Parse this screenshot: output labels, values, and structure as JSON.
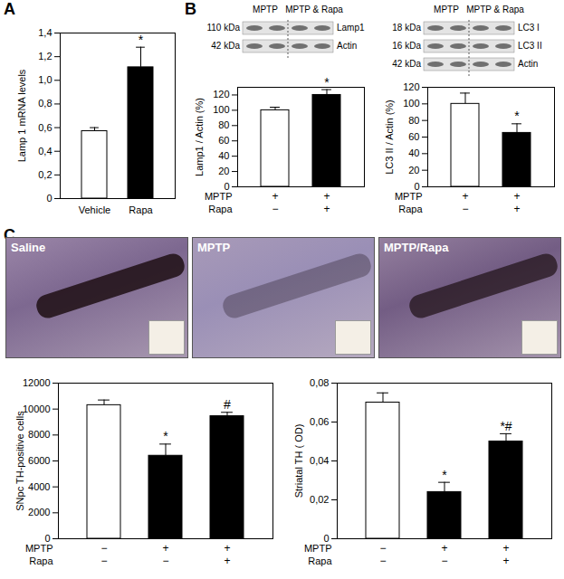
{
  "chart_data": [
    {
      "type": "bar",
      "panel": "A",
      "ylabel": "Lamp 1 mRNA levels",
      "categories": [
        "Vehicle",
        "Rapa"
      ],
      "values": [
        0.57,
        1.11
      ],
      "errors": [
        0.03,
        0.17
      ],
      "colors": [
        "#ffffff",
        "#000000"
      ],
      "annotations": [
        null,
        "*"
      ],
      "ylim": [
        0,
        1.4
      ],
      "yticks": [
        0,
        {
          "value": 0.2,
          "label": "0,2"
        },
        {
          "value": 0.4,
          "label": "0,4"
        },
        {
          "value": 0.6,
          "label": "0,6"
        },
        {
          "value": 0.8,
          "label": "0,8"
        },
        {
          "value": 1,
          "label": "1,0"
        },
        {
          "value": 1.2,
          "label": "1,2"
        },
        {
          "value": 1.4,
          "label": "1,4"
        }
      ]
    },
    {
      "type": "bar",
      "panel": "B",
      "ylabel": "Lamp1 / Actin (%)",
      "categories": [
        null,
        null
      ],
      "values": [
        100,
        120
      ],
      "errors": [
        4,
        7
      ],
      "colors": [
        "#ffffff",
        "#000000"
      ],
      "annotations": [
        null,
        "*"
      ],
      "conditions": [
        {
          "label": "MPTP",
          "values": [
            "+",
            "+"
          ]
        },
        {
          "label": "Rapa",
          "values": [
            "−",
            "+"
          ]
        }
      ],
      "ylim": [
        0,
        130
      ],
      "yticks": [
        0,
        20,
        40,
        60,
        80,
        100,
        120
      ]
    },
    {
      "type": "bar",
      "panel": "B",
      "ylabel": "LC3 II / Actin (%)",
      "categories": [
        null,
        null
      ],
      "values": [
        100,
        65
      ],
      "errors": [
        13,
        11
      ],
      "colors": [
        "#ffffff",
        "#000000"
      ],
      "annotations": [
        null,
        "*"
      ],
      "conditions": [
        {
          "label": "MPTP",
          "values": [
            "+",
            "+"
          ]
        },
        {
          "label": "Rapa",
          "values": [
            "−",
            "+"
          ]
        }
      ],
      "ylim": [
        0,
        120
      ],
      "yticks": [
        0,
        20,
        40,
        60,
        80,
        100,
        120
      ]
    },
    {
      "type": "bar",
      "panel": "C",
      "ylabel": "SNpc TH-positive cells",
      "categories": [
        null,
        null,
        null
      ],
      "values": [
        10300,
        6400,
        9450
      ],
      "errors": [
        400,
        900,
        300
      ],
      "colors": [
        "#ffffff",
        "#000000",
        "#000000"
      ],
      "annotations": [
        null,
        "*",
        "#"
      ],
      "conditions": [
        {
          "label": "MPTP",
          "values": [
            "−",
            "+",
            "+"
          ]
        },
        {
          "label": "Rapa",
          "values": [
            "−",
            "−",
            "+"
          ]
        }
      ],
      "ylim": [
        0,
        12000
      ],
      "yticks": [
        0,
        2000,
        4000,
        6000,
        8000,
        10000,
        12000
      ]
    },
    {
      "type": "bar",
      "panel": "C",
      "ylabel": "Striatal TH ( OD)",
      "categories": [
        null,
        null,
        null
      ],
      "values": [
        0.07,
        0.024,
        0.05
      ],
      "errors": [
        0.005,
        0.005,
        0.004
      ],
      "colors": [
        "#ffffff",
        "#000000",
        "#000000"
      ],
      "annotations": [
        null,
        "*",
        "*#"
      ],
      "conditions": [
        {
          "label": "MPTP",
          "values": [
            "−",
            "+",
            "+"
          ]
        },
        {
          "label": "Rapa",
          "values": [
            "−",
            "−",
            "+"
          ]
        }
      ],
      "ylim": [
        0,
        0.08
      ],
      "yticks": [
        0,
        {
          "value": 0.02,
          "label": "0,02"
        },
        {
          "value": 0.04,
          "label": "0,04"
        },
        {
          "value": 0.06,
          "label": "0,06"
        },
        {
          "value": 0.08,
          "label": "0,08"
        }
      ]
    }
  ],
  "panel_letters": [
    "A",
    "B",
    "C"
  ],
  "blots": [
    {
      "headers": [
        "MPTP",
        "MPTP & Rapa"
      ],
      "rows": [
        {
          "size": "110 kDa",
          "name": "Lamp1"
        },
        {
          "size": "42 kDa",
          "name": "Actin"
        }
      ]
    },
    {
      "headers": [
        "MPTP",
        "MPTP & Rapa"
      ],
      "rows": [
        {
          "size": "18 kDa",
          "name": "LC3 I"
        },
        {
          "size": "16 kDa",
          "name": "LC3 II"
        },
        {
          "size": "42 kDa",
          "name": "Actin"
        }
      ]
    }
  ],
  "micrographs": [
    "Saline",
    "MPTP",
    "MPTP/Rapa"
  ]
}
